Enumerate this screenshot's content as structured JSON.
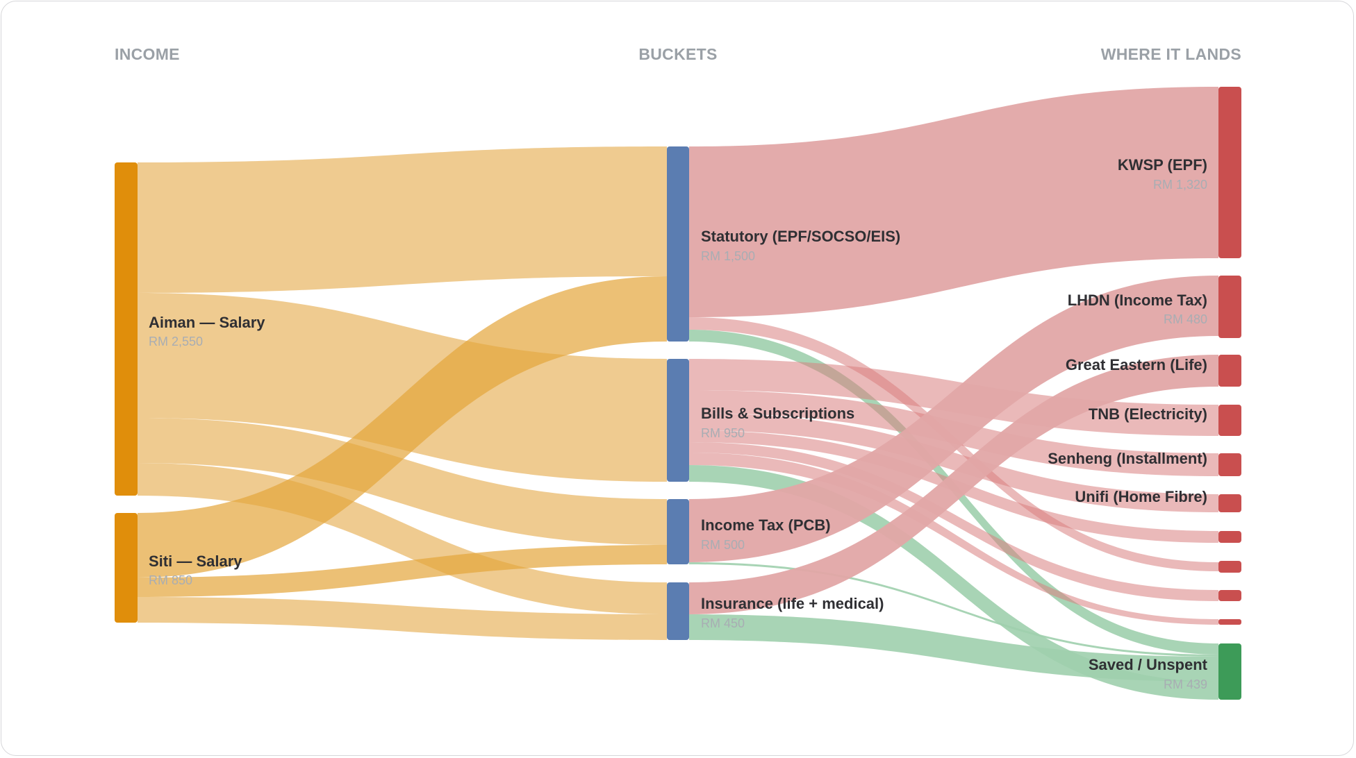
{
  "headers": {
    "income": "INCOME",
    "buckets": "BUCKETS",
    "destinations": "WHERE IT LANDS"
  },
  "colors": {
    "income_node": "#e08e0b",
    "bucket_node": "#5b7db1",
    "expense_node": "#c94f4f",
    "saved_node": "#3d9b58",
    "income_link": "#eec88a",
    "expense_link": "#e2a6a6",
    "saved_link": "#9fcfad"
  },
  "nodes": {
    "aiman": {
      "label": "Aiman — Salary",
      "value": "RM 2,550"
    },
    "siti": {
      "label": "Siti — Salary",
      "value": "RM 850"
    },
    "statutory": {
      "label": "Statutory (EPF/SOCSO/EIS)",
      "value": "RM 1,500"
    },
    "bills": {
      "label": "Bills & Subscriptions",
      "value": "RM 950"
    },
    "tax": {
      "label": "Income Tax (PCB)",
      "value": "RM 500"
    },
    "insurance": {
      "label": "Insurance (life + medical)",
      "value": "RM 450"
    },
    "kwsp": {
      "label": "KWSP (EPF)",
      "value": "RM 1,320"
    },
    "lhdn": {
      "label": "LHDN (Income Tax)",
      "value": "RM 480"
    },
    "great_eastern": {
      "label": "Great Eastern (Life)"
    },
    "tnb": {
      "label": "TNB (Electricity)"
    },
    "senheng": {
      "label": "Senheng (Installment)"
    },
    "unifi": {
      "label": "Unifi (Home Fibre)"
    },
    "saved": {
      "label": "Saved / Unspent",
      "value": "RM 439"
    }
  }
}
